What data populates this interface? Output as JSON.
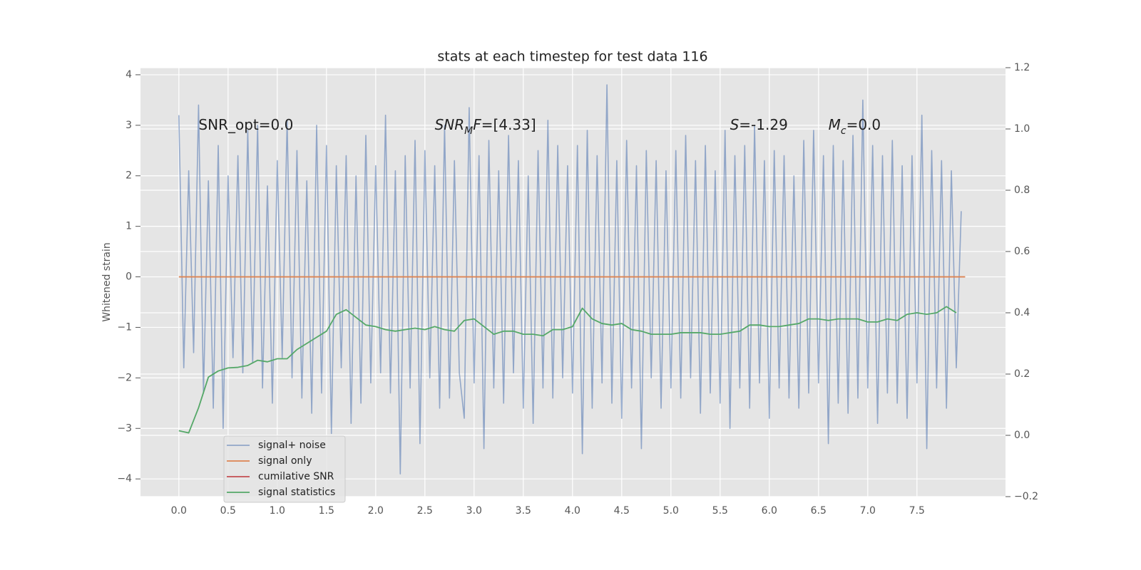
{
  "chart_data": {
    "type": "line",
    "title": "stats at each timestep for test data 116",
    "ylabel": "Whitened strain",
    "xlim": [
      -0.39,
      8.4
    ],
    "ylim": [
      -4.35,
      4.14
    ],
    "y2lim": [
      -0.2,
      1.2
    ],
    "xticks": [
      0.0,
      0.5,
      1.0,
      1.5,
      2.0,
      2.5,
      3.0,
      3.5,
      4.0,
      4.5,
      5.0,
      5.5,
      6.0,
      6.5,
      7.0,
      7.5
    ],
    "yticks": [
      -4,
      -3,
      -2,
      -1,
      0,
      1,
      2,
      3,
      4
    ],
    "y2ticks": [
      -0.2,
      0.0,
      0.2,
      0.4,
      0.6,
      0.8,
      1.0,
      1.2
    ],
    "grid": true,
    "legend": "lower left",
    "series": [
      {
        "name": "signal+ noise",
        "color": "#4c72b0",
        "x": [
          0.0,
          0.05,
          0.1,
          0.15,
          0.2,
          0.25,
          0.3,
          0.35,
          0.4,
          0.45,
          0.5,
          0.55,
          0.6,
          0.65,
          0.7,
          0.75,
          0.8,
          0.85,
          0.9,
          0.95,
          1.0,
          1.05,
          1.1,
          1.15,
          1.2,
          1.25,
          1.3,
          1.35,
          1.4,
          1.45,
          1.5,
          1.55,
          1.6,
          1.65,
          1.7,
          1.75,
          1.8,
          1.85,
          1.9,
          1.95,
          2.0,
          2.05,
          2.1,
          2.15,
          2.2,
          2.25,
          2.3,
          2.35,
          2.4,
          2.45,
          2.5,
          2.55,
          2.6,
          2.65,
          2.7,
          2.75,
          2.8,
          2.85,
          2.9,
          2.95,
          3.0,
          3.05,
          3.1,
          3.15,
          3.2,
          3.25,
          3.3,
          3.35,
          3.4,
          3.45,
          3.5,
          3.55,
          3.6,
          3.65,
          3.7,
          3.75,
          3.8,
          3.85,
          3.9,
          3.95,
          4.0,
          4.05,
          4.1,
          4.15,
          4.2,
          4.25,
          4.3,
          4.35,
          4.4,
          4.45,
          4.5,
          4.55,
          4.6,
          4.65,
          4.7,
          4.75,
          4.8,
          4.85,
          4.9,
          4.95,
          5.0,
          5.05,
          5.1,
          5.15,
          5.2,
          5.25,
          5.3,
          5.35,
          5.4,
          5.45,
          5.5,
          5.55,
          5.6,
          5.65,
          5.7,
          5.75,
          5.8,
          5.85,
          5.9,
          5.95,
          6.0,
          6.05,
          6.1,
          6.15,
          6.2,
          6.25,
          6.3,
          6.35,
          6.4,
          6.45,
          6.5,
          6.55,
          6.6,
          6.65,
          6.7,
          6.75,
          6.8,
          6.85,
          6.9,
          6.95,
          7.0,
          7.05,
          7.1,
          7.15,
          7.2,
          7.25,
          7.3,
          7.35,
          7.4,
          7.45,
          7.5,
          7.55,
          7.6,
          7.65,
          7.7,
          7.75,
          7.8,
          7.85,
          7.9,
          7.95
        ],
        "values": [
          3.2,
          -1.8,
          2.1,
          -1.5,
          3.4,
          -2.3,
          1.9,
          -2.6,
          2.6,
          -3.0,
          2.0,
          -1.6,
          2.4,
          -1.9,
          2.9,
          -1.7,
          3.0,
          -2.2,
          1.8,
          -2.5,
          2.3,
          -1.6,
          3.1,
          -2.0,
          2.5,
          -2.4,
          1.9,
          -2.7,
          3.0,
          -2.3,
          2.6,
          -3.1,
          2.2,
          -1.8,
          2.4,
          -2.9,
          2.0,
          -2.5,
          2.8,
          -2.1,
          2.2,
          -1.9,
          3.2,
          -2.3,
          2.1,
          -3.9,
          2.4,
          -2.2,
          2.7,
          -3.3,
          2.5,
          -2.0,
          2.2,
          -2.6,
          3.0,
          -2.4,
          2.3,
          -1.9,
          -2.8,
          3.35,
          -2.1,
          2.4,
          -3.4,
          2.7,
          -2.2,
          2.1,
          -2.5,
          2.8,
          -1.9,
          2.3,
          -2.6,
          2.0,
          -2.9,
          2.5,
          -2.2,
          3.1,
          -2.4,
          2.6,
          -2.0,
          2.2,
          -2.3,
          2.6,
          -3.5,
          2.9,
          -2.6,
          2.4,
          -2.1,
          3.8,
          -2.5,
          2.3,
          -2.8,
          2.7,
          -2.2,
          2.2,
          -3.4,
          2.5,
          -2.0,
          2.3,
          -2.6,
          2.1,
          -2.2,
          2.5,
          -2.4,
          2.8,
          -2.0,
          2.3,
          -2.7,
          2.6,
          -2.3,
          2.1,
          -2.5,
          2.9,
          -3.0,
          2.4,
          -2.2,
          2.6,
          -2.6,
          3.0,
          -2.1,
          2.3,
          -2.8,
          2.5,
          -2.2,
          2.4,
          -2.4,
          2.0,
          -2.6,
          2.7,
          -2.3,
          2.9,
          -2.1,
          2.4,
          -3.3,
          2.6,
          -2.5,
          2.3,
          -2.7,
          2.8,
          -2.4,
          3.5,
          -2.2,
          2.6,
          -2.9,
          2.4,
          -2.3,
          2.7,
          -2.5,
          2.2,
          -2.8,
          2.4,
          -2.1,
          3.2,
          -3.4,
          2.5,
          -2.2,
          2.3,
          -2.6,
          2.1,
          -1.8,
          1.3
        ]
      },
      {
        "name": "signal only",
        "color": "#dd8452",
        "x": [
          0.0,
          7.99
        ],
        "values": [
          0,
          0
        ]
      },
      {
        "name": "cumilative SNR",
        "color": "#c44e52",
        "x": [],
        "values": []
      },
      {
        "name": "signal statistics",
        "color": "#55a868",
        "axis": "y2",
        "x": [
          0.0,
          0.1,
          0.2,
          0.3,
          0.4,
          0.5,
          0.6,
          0.7,
          0.8,
          0.9,
          1.0,
          1.1,
          1.2,
          1.3,
          1.4,
          1.5,
          1.6,
          1.7,
          1.8,
          1.9,
          2.0,
          2.1,
          2.2,
          2.3,
          2.4,
          2.5,
          2.6,
          2.7,
          2.8,
          2.9,
          3.0,
          3.1,
          3.2,
          3.3,
          3.4,
          3.5,
          3.6,
          3.7,
          3.8,
          3.9,
          4.0,
          4.1,
          4.2,
          4.3,
          4.4,
          4.5,
          4.6,
          4.7,
          4.8,
          4.9,
          5.0,
          5.1,
          5.2,
          5.3,
          5.4,
          5.5,
          5.6,
          5.7,
          5.8,
          5.9,
          6.0,
          6.1,
          6.2,
          6.3,
          6.4,
          6.5,
          6.6,
          6.7,
          6.8,
          6.9,
          7.0,
          7.1,
          7.2,
          7.3,
          7.4,
          7.5,
          7.6,
          7.7,
          7.8,
          7.9
        ],
        "values": [
          0.015,
          0.008,
          0.09,
          0.19,
          0.21,
          0.22,
          0.222,
          0.228,
          0.245,
          0.24,
          0.25,
          0.25,
          0.28,
          0.3,
          0.32,
          0.34,
          0.395,
          0.41,
          0.385,
          0.36,
          0.355,
          0.345,
          0.34,
          0.345,
          0.35,
          0.345,
          0.355,
          0.345,
          0.34,
          0.375,
          0.38,
          0.355,
          0.33,
          0.34,
          0.34,
          0.33,
          0.33,
          0.325,
          0.345,
          0.345,
          0.355,
          0.415,
          0.38,
          0.365,
          0.36,
          0.365,
          0.345,
          0.34,
          0.33,
          0.33,
          0.33,
          0.335,
          0.335,
          0.335,
          0.33,
          0.33,
          0.335,
          0.34,
          0.36,
          0.36,
          0.355,
          0.355,
          0.36,
          0.365,
          0.38,
          0.38,
          0.375,
          0.38,
          0.38,
          0.38,
          0.37,
          0.37,
          0.38,
          0.375,
          0.395,
          0.4,
          0.395,
          0.4,
          0.42,
          0.4
        ]
      }
    ],
    "annotations": [
      {
        "x": 0.2,
        "y": 3.0,
        "parts": [
          {
            "text": "SNR_opt=0.0",
            "style": "normal"
          }
        ]
      },
      {
        "x": 2.6,
        "y": 3.0,
        "parts": [
          {
            "text": "SNR",
            "style": "italic"
          },
          {
            "text": "M",
            "style": "sub"
          },
          {
            "text": "F",
            "style": "italic"
          },
          {
            "text": "=[4.33]",
            "style": "normal"
          }
        ]
      },
      {
        "x": 5.6,
        "y": 3.0,
        "parts": [
          {
            "text": "S",
            "style": "italic"
          },
          {
            "text": "=-1.29",
            "style": "normal"
          }
        ]
      },
      {
        "x": 6.6,
        "y": 3.0,
        "parts": [
          {
            "text": "M",
            "style": "italic"
          },
          {
            "text": "c",
            "style": "sub"
          },
          {
            "text": "=0.0",
            "style": "normal"
          }
        ]
      }
    ]
  }
}
